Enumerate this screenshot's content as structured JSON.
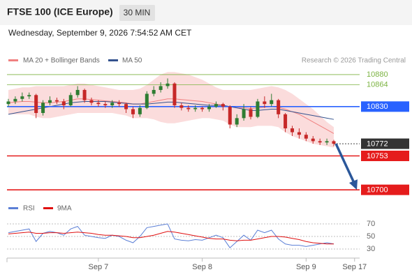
{
  "header": {
    "title": "FTSE 100 (ICE Europe)",
    "interval": "30 MIN",
    "subtitle": "Wednesday, September 9, 2026 7:54:52 AM CET"
  },
  "chart_data": [
    {
      "type": "candlestick",
      "legend": {
        "ma20": "MA 20 + Bollinger Bands",
        "ma50": "MA 50"
      },
      "credit": "Research © 2026 Trading Central",
      "categories": [
        null,
        null,
        null,
        null,
        null,
        null,
        null,
        null,
        null,
        null,
        null,
        null,
        null,
        "Sep 7",
        null,
        null,
        null,
        null,
        null,
        null,
        null,
        null,
        null,
        null,
        null,
        null,
        null,
        null,
        "Sep 8",
        null,
        null,
        null,
        null,
        null,
        null,
        null,
        null,
        null,
        null,
        null,
        null,
        null,
        null,
        "Sep 9",
        null,
        null,
        null,
        null,
        null,
        null,
        "Sep 17"
      ],
      "open": [
        10834,
        10838,
        10842,
        10846,
        10848,
        10820,
        10836,
        10840,
        10838,
        10832,
        10848,
        10856,
        10840,
        10836,
        10834,
        10832,
        10836,
        10834,
        10826,
        10818,
        10828,
        10850,
        10856,
        10862,
        10866,
        10832,
        10828,
        10826,
        10828,
        10826,
        10830,
        10834,
        10830,
        10802,
        10812,
        10826,
        10814,
        10838,
        10834,
        10840,
        10818,
        10796,
        10790,
        10786,
        10780,
        10776,
        10774,
        10776,
        null,
        null,
        null
      ],
      "high": [
        10842,
        10846,
        10852,
        10852,
        10850,
        10840,
        10846,
        10844,
        10842,
        10852,
        10862,
        10858,
        10844,
        10840,
        10838,
        10840,
        10840,
        10836,
        10830,
        10832,
        10854,
        10862,
        10868,
        10874,
        10868,
        10836,
        10832,
        10832,
        10830,
        10834,
        10838,
        10836,
        10832,
        10818,
        10834,
        10830,
        10842,
        10846,
        10850,
        10842,
        10820,
        10800,
        10796,
        10790,
        10784,
        10780,
        10780,
        10778,
        null,
        null,
        null
      ],
      "low": [
        10830,
        10834,
        10838,
        10842,
        10812,
        10816,
        10832,
        10834,
        10826,
        10830,
        10844,
        10836,
        10832,
        10830,
        10828,
        10828,
        10830,
        10820,
        10812,
        10814,
        10826,
        10846,
        10852,
        10858,
        10828,
        10824,
        10822,
        10822,
        10822,
        10822,
        10828,
        10824,
        10796,
        10798,
        10808,
        10810,
        10812,
        10828,
        10830,
        10812,
        10790,
        10784,
        10780,
        10776,
        10772,
        10770,
        10770,
        10768,
        null,
        null,
        null
      ],
      "close": [
        10838,
        10842,
        10846,
        10848,
        10820,
        10836,
        10840,
        10838,
        10832,
        10848,
        10856,
        10840,
        10836,
        10834,
        10832,
        10836,
        10834,
        10826,
        10818,
        10828,
        10850,
        10856,
        10862,
        10866,
        10832,
        10828,
        10826,
        10828,
        10826,
        10830,
        10834,
        10830,
        10802,
        10812,
        10826,
        10814,
        10838,
        10834,
        10840,
        10818,
        10796,
        10790,
        10786,
        10780,
        10776,
        10774,
        10776,
        10772,
        null,
        null,
        null
      ],
      "ma20": [
        10836,
        10837,
        10838,
        10838,
        10837,
        10836,
        10836,
        10837,
        10838,
        10840,
        10842,
        10842,
        10841,
        10840,
        10839,
        10838,
        10837,
        10836,
        10834,
        10834,
        10836,
        10838,
        10840,
        10842,
        10842,
        10841,
        10840,
        10839,
        10838,
        10836,
        10834,
        10832,
        10830,
        10828,
        10828,
        10827,
        10828,
        10829,
        10830,
        10829,
        10826,
        10822,
        10818,
        10812,
        10806,
        10800,
        10794,
        10788,
        null,
        null,
        null
      ],
      "bb_upper": [
        10856,
        10858,
        10860,
        10860,
        10862,
        10862,
        10862,
        10862,
        10862,
        10864,
        10866,
        10866,
        10864,
        10862,
        10860,
        10858,
        10856,
        10856,
        10856,
        10858,
        10864,
        10872,
        10880,
        10884,
        10884,
        10882,
        10880,
        10876,
        10872,
        10866,
        10860,
        10856,
        10856,
        10856,
        10856,
        10856,
        10858,
        10860,
        10862,
        10860,
        10856,
        10850,
        10842,
        10834,
        10826,
        10816,
        10806,
        10798,
        null,
        null,
        null
      ],
      "bb_lower": [
        10818,
        10818,
        10818,
        10818,
        10814,
        10812,
        10812,
        10814,
        10816,
        10818,
        10820,
        10820,
        10820,
        10820,
        10820,
        10820,
        10818,
        10816,
        10812,
        10812,
        10812,
        10810,
        10806,
        10804,
        10804,
        10806,
        10808,
        10810,
        10812,
        10812,
        10810,
        10808,
        10802,
        10798,
        10798,
        10798,
        10800,
        10800,
        10800,
        10798,
        10790,
        10784,
        10780,
        10776,
        10772,
        10770,
        10768,
        10766,
        null,
        null,
        null
      ],
      "ma50": [
        10818,
        10820,
        10822,
        10824,
        10826,
        10828,
        10830,
        10832,
        10834,
        10836,
        10837,
        10838,
        10838,
        10838,
        10838,
        10837,
        10836,
        10835,
        10834,
        10834,
        10834,
        10835,
        10836,
        10837,
        10837,
        10836,
        10835,
        10834,
        10833,
        10832,
        10832,
        10832,
        10830,
        10828,
        10826,
        10824,
        10824,
        10825,
        10826,
        10826,
        10824,
        10822,
        10820,
        10818,
        10816,
        10814,
        10812,
        10810,
        null,
        null,
        null
      ],
      "resistances": [
        10880,
        10864
      ],
      "pivot": 10830,
      "last": 10772,
      "supports": [
        10753,
        10700
      ],
      "ylim": [
        10686,
        10893
      ],
      "colors": {
        "up": "#2e7d32",
        "down": "#c62828",
        "ma20": "#f08080",
        "band": "#fbdcdc",
        "ma50": "#34528e",
        "resistance": "#7cb342",
        "pivot": "#2962ff",
        "last": "#333333",
        "support": "#e51c1c"
      }
    },
    {
      "type": "line",
      "series": [
        {
          "name": "RSI",
          "color": "#5b7fd6",
          "values": [
            56,
            58,
            60,
            62,
            42,
            55,
            58,
            56,
            52,
            62,
            66,
            52,
            50,
            48,
            47,
            52,
            50,
            44,
            40,
            50,
            64,
            66,
            68,
            70,
            46,
            44,
            43,
            45,
            44,
            48,
            52,
            48,
            32,
            42,
            52,
            44,
            60,
            56,
            60,
            46,
            38,
            36,
            36,
            34,
            36,
            38,
            40,
            38,
            null,
            null,
            null
          ]
        },
        {
          "name": "9MA",
          "color": "#e01010",
          "values": [
            54,
            55,
            56,
            57,
            55,
            55,
            56,
            56,
            55,
            56,
            57,
            56,
            55,
            53,
            52,
            52,
            51,
            50,
            48,
            48,
            50,
            52,
            55,
            58,
            57,
            55,
            53,
            51,
            49,
            47,
            46,
            46,
            44,
            43,
            44,
            44,
            46,
            48,
            50,
            50,
            49,
            47,
            45,
            42,
            40,
            39,
            38,
            38,
            null,
            null,
            null
          ]
        }
      ],
      "ylim": [
        20,
        80
      ],
      "yticks": [
        30,
        50,
        70
      ]
    }
  ]
}
